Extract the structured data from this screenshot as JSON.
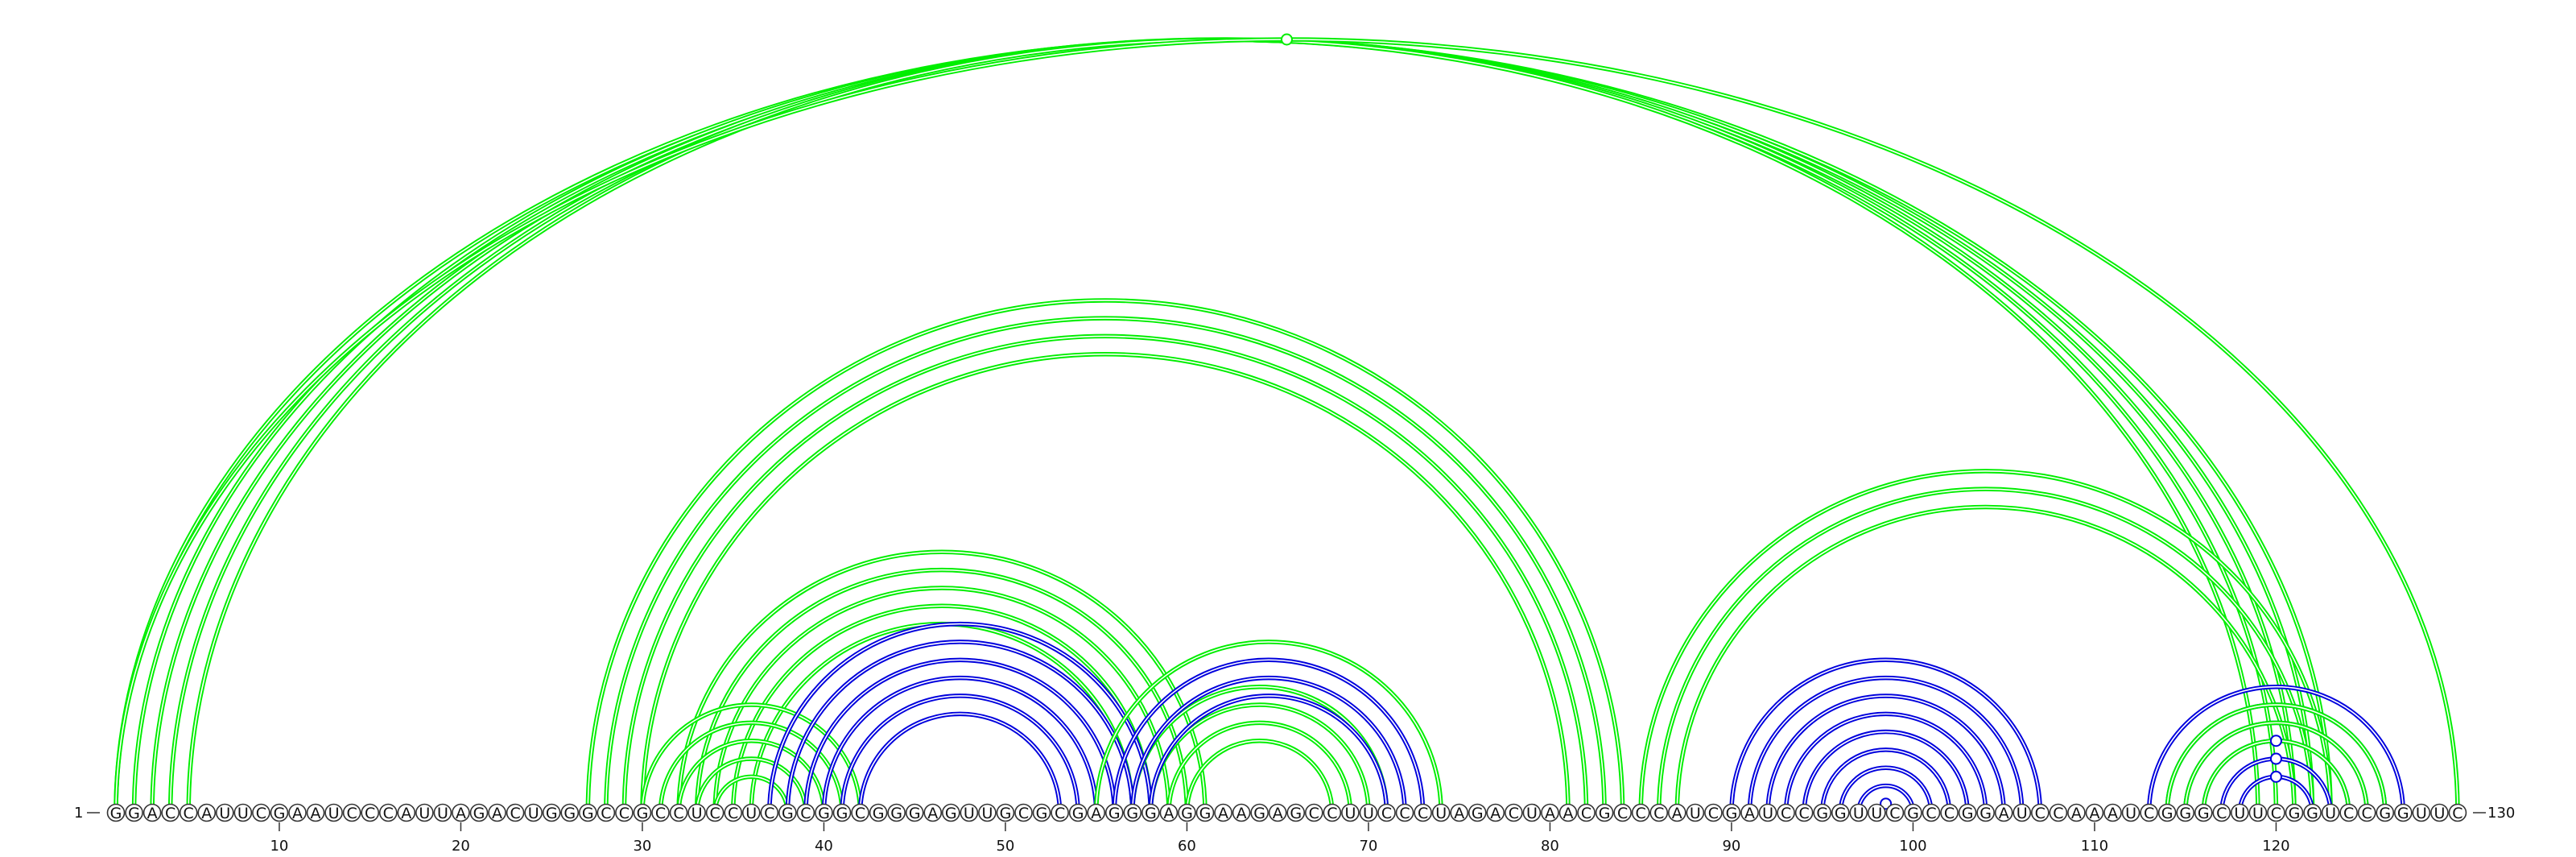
{
  "sequence": "GGACCAUUCGAAUCCCAUUAGACUGGGCCGCCUCCUCGCGGCGGGAGUUGCGCGAGGGAGGAAGAGCCUUCCCUAGACUAACGCCCAUCGAUCCGGUUCGCCGGAUCCAAAUCGGGCUUCGGUCCGGUUC",
  "start_label": "1",
  "end_label": "130",
  "tick_labels": [
    "10",
    "20",
    "30",
    "40",
    "50",
    "60",
    "70",
    "80",
    "90",
    "100",
    "110",
    "120"
  ],
  "colors": {
    "green": "#00ee00",
    "blue": "#0000dd"
  },
  "arcs": [
    {
      "i": 1,
      "j": 123,
      "color": "green"
    },
    {
      "i": 2,
      "j": 122,
      "color": "green"
    },
    {
      "i": 3,
      "j": 121,
      "color": "green"
    },
    {
      "i": 4,
      "j": 120,
      "color": "green"
    },
    {
      "i": 5,
      "j": 119,
      "color": "green"
    },
    {
      "i": 27,
      "j": 84,
      "color": "green"
    },
    {
      "i": 28,
      "j": 83,
      "color": "green"
    },
    {
      "i": 29,
      "j": 82,
      "color": "green"
    },
    {
      "i": 30,
      "j": 81,
      "color": "green"
    },
    {
      "i": 32,
      "j": 61,
      "color": "green"
    },
    {
      "i": 33,
      "j": 60,
      "color": "green"
    },
    {
      "i": 34,
      "j": 59,
      "color": "green"
    },
    {
      "i": 35,
      "j": 58,
      "color": "green"
    },
    {
      "i": 36,
      "j": 57,
      "color": "green"
    },
    {
      "i": 30,
      "j": 42,
      "color": "green"
    },
    {
      "i": 31,
      "j": 41,
      "color": "green"
    },
    {
      "i": 32,
      "j": 40,
      "color": "green"
    },
    {
      "i": 33,
      "j": 39,
      "color": "green"
    },
    {
      "i": 34,
      "j": 38,
      "color": "green"
    },
    {
      "i": 37,
      "j": 58,
      "color": "blue"
    },
    {
      "i": 38,
      "j": 57,
      "color": "blue"
    },
    {
      "i": 39,
      "j": 56,
      "color": "blue"
    },
    {
      "i": 40,
      "j": 55,
      "color": "blue"
    },
    {
      "i": 41,
      "j": 54,
      "color": "blue"
    },
    {
      "i": 42,
      "j": 53,
      "color": "blue"
    },
    {
      "i": 55,
      "j": 74,
      "color": "green"
    },
    {
      "i": 57,
      "j": 71,
      "color": "green"
    },
    {
      "i": 58,
      "j": 70,
      "color": "green"
    },
    {
      "i": 59,
      "j": 69,
      "color": "green"
    },
    {
      "i": 60,
      "j": 68,
      "color": "green"
    },
    {
      "i": 56,
      "j": 73,
      "color": "blue"
    },
    {
      "i": 57,
      "j": 72,
      "color": "blue"
    },
    {
      "i": 58,
      "j": 71,
      "color": "blue"
    },
    {
      "i": 85,
      "j": 123,
      "color": "green"
    },
    {
      "i": 86,
      "j": 122,
      "color": "green"
    },
    {
      "i": 87,
      "j": 121,
      "color": "green"
    },
    {
      "i": 90,
      "j": 107,
      "color": "blue"
    },
    {
      "i": 91,
      "j": 106,
      "color": "blue"
    },
    {
      "i": 92,
      "j": 105,
      "color": "blue"
    },
    {
      "i": 93,
      "j": 104,
      "color": "blue"
    },
    {
      "i": 94,
      "j": 103,
      "color": "blue"
    },
    {
      "i": 95,
      "j": 102,
      "color": "blue"
    },
    {
      "i": 96,
      "j": 101,
      "color": "blue"
    },
    {
      "i": 97,
      "j": 100,
      "color": "blue"
    },
    {
      "i": 113,
      "j": 127,
      "color": "blue"
    },
    {
      "i": 114,
      "j": 126,
      "color": "blue"
    },
    {
      "i": 115,
      "j": 125,
      "color": "blue"
    },
    {
      "i": 116,
      "j": 124,
      "color": "blue"
    },
    {
      "i": 117,
      "j": 123,
      "color": "blue"
    },
    {
      "i": 118,
      "j": 122,
      "color": "blue"
    },
    {
      "i": 114,
      "j": 126,
      "color": "green"
    },
    {
      "i": 115,
      "j": 125,
      "color": "green"
    },
    {
      "i": 116,
      "j": 124,
      "color": "green"
    },
    {
      "i": 1,
      "j": 130,
      "color": "green"
    }
  ],
  "markers": [
    {
      "i": 1,
      "j": 130,
      "color": "green"
    },
    {
      "i": 98,
      "j": 99,
      "color": "blue"
    },
    {
      "i": 116,
      "j": 124,
      "color": "blue"
    },
    {
      "i": 117,
      "j": 123,
      "color": "blue"
    },
    {
      "i": 118,
      "j": 122,
      "color": "blue"
    }
  ]
}
